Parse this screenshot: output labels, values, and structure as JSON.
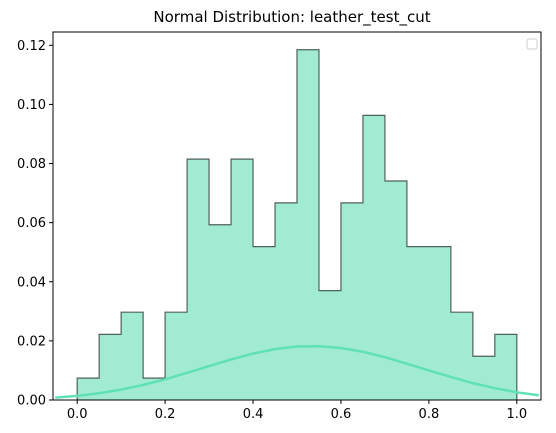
{
  "chart_data": {
    "type": "bar",
    "title": "Normal Distribution: leather_test_cut",
    "xlabel": "",
    "ylabel": "",
    "xlim": [
      -0.055,
      1.055
    ],
    "ylim": [
      0,
      0.1245
    ],
    "x_ticks": [
      0.0,
      0.2,
      0.4,
      0.6,
      0.8,
      1.0
    ],
    "x_tick_labels": [
      "0.0",
      "0.2",
      "0.4",
      "0.6",
      "0.8",
      "1.0"
    ],
    "y_ticks": [
      0.0,
      0.02,
      0.04,
      0.06,
      0.08,
      0.1,
      0.12
    ],
    "y_tick_labels": [
      "0.00",
      "0.02",
      "0.04",
      "0.06",
      "0.08",
      "0.10",
      "0.12"
    ],
    "grid": false,
    "legend": {
      "placement": "top-right",
      "entries": []
    },
    "histogram": {
      "bin_edges": [
        0.0,
        0.05,
        0.1,
        0.15,
        0.2,
        0.25,
        0.3,
        0.35,
        0.4,
        0.45,
        0.5,
        0.55,
        0.6,
        0.65,
        0.7,
        0.75,
        0.8,
        0.85,
        0.9,
        0.95,
        1.0
      ],
      "values": [
        0.0074,
        0.0222,
        0.0297,
        0.0074,
        0.0297,
        0.0815,
        0.0593,
        0.0815,
        0.0519,
        0.0667,
        0.1185,
        0.037,
        0.0667,
        0.0963,
        0.0741,
        0.0519,
        0.0519,
        0.0297,
        0.0148,
        0.0222
      ],
      "fill_color": "#a2ebd3",
      "edge_color": "#4f6259"
    },
    "curve": {
      "x": [
        -0.05,
        0.0,
        0.05,
        0.1,
        0.15,
        0.2,
        0.25,
        0.3,
        0.35,
        0.4,
        0.45,
        0.5,
        0.55,
        0.6,
        0.65,
        0.7,
        0.75,
        0.8,
        0.85,
        0.9,
        0.95,
        1.0,
        1.05
      ],
      "y": [
        0.0008,
        0.0014,
        0.0023,
        0.0035,
        0.0051,
        0.007,
        0.0092,
        0.0115,
        0.0137,
        0.0157,
        0.0172,
        0.0181,
        0.0182,
        0.0176,
        0.0163,
        0.0145,
        0.0123,
        0.01,
        0.0078,
        0.0057,
        0.004,
        0.0026,
        0.0016
      ],
      "color": "#5fe0b6"
    }
  }
}
